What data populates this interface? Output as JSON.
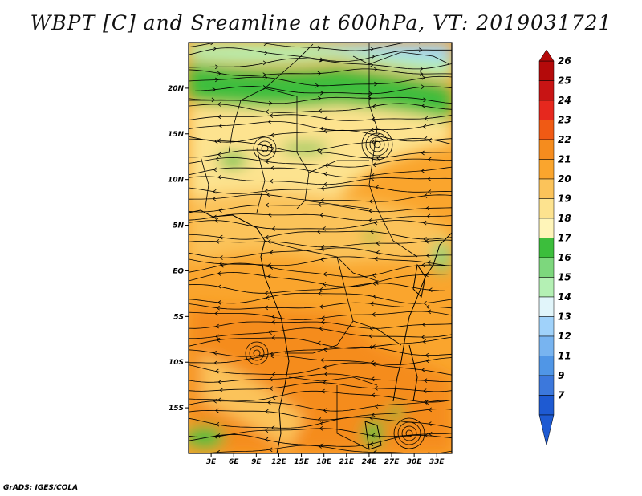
{
  "title": "WBPT [C] and Sreamline at 600hPa, VT: 2019031721",
  "footer": "GrADS: IGES/COLA",
  "map": {
    "lat_labels": [
      {
        "lat": 20,
        "text": "20N"
      },
      {
        "lat": 15,
        "text": "15N"
      },
      {
        "lat": 10,
        "text": "10N"
      },
      {
        "lat": 5,
        "text": "5N"
      },
      {
        "lat": 0,
        "text": "EQ"
      },
      {
        "lat": -5,
        "text": "5S"
      },
      {
        "lat": -10,
        "text": "10S"
      },
      {
        "lat": -15,
        "text": "15S"
      }
    ],
    "lon_labels": [
      {
        "lon": 3,
        "text": "3E"
      },
      {
        "lon": 6,
        "text": "6E"
      },
      {
        "lon": 9,
        "text": "9E"
      },
      {
        "lon": 12,
        "text": "12E"
      },
      {
        "lon": 15,
        "text": "15E"
      },
      {
        "lon": 18,
        "text": "18E"
      },
      {
        "lon": 21,
        "text": "21E"
      },
      {
        "lon": 24,
        "text": "24E"
      },
      {
        "lon": 27,
        "text": "27E"
      },
      {
        "lon": 30,
        "text": "30E"
      },
      {
        "lon": 33,
        "text": "33E"
      }
    ],
    "lon_range": [
      0,
      35
    ],
    "lat_range": [
      -20,
      25
    ]
  },
  "colorbar": {
    "levels": [
      {
        "label": "26",
        "color": "#b40a0a"
      },
      {
        "label": "25",
        "color": "#c81414"
      },
      {
        "label": "24",
        "color": "#e6281e"
      },
      {
        "label": "23",
        "color": "#f05a14"
      },
      {
        "label": "22",
        "color": "#f58c1e"
      },
      {
        "label": "21",
        "color": "#faa52d"
      },
      {
        "label": "20",
        "color": "#fbc35a"
      },
      {
        "label": "19",
        "color": "#fde38f"
      },
      {
        "label": "18",
        "color": "#fff5b9"
      },
      {
        "label": "17",
        "color": "#3cbe3c"
      },
      {
        "label": "16",
        "color": "#7dd77d"
      },
      {
        "label": "15",
        "color": "#b4f0b4"
      },
      {
        "label": "14",
        "color": "#e1f5fa"
      },
      {
        "label": "13",
        "color": "#a0d2fa"
      },
      {
        "label": "12",
        "color": "#78b4f0"
      },
      {
        "label": "11",
        "color": "#5096e6"
      },
      {
        "label": "9",
        "color": "#3c78dc"
      },
      {
        "label": "7",
        "color": "#1e5ad2"
      }
    ]
  }
}
